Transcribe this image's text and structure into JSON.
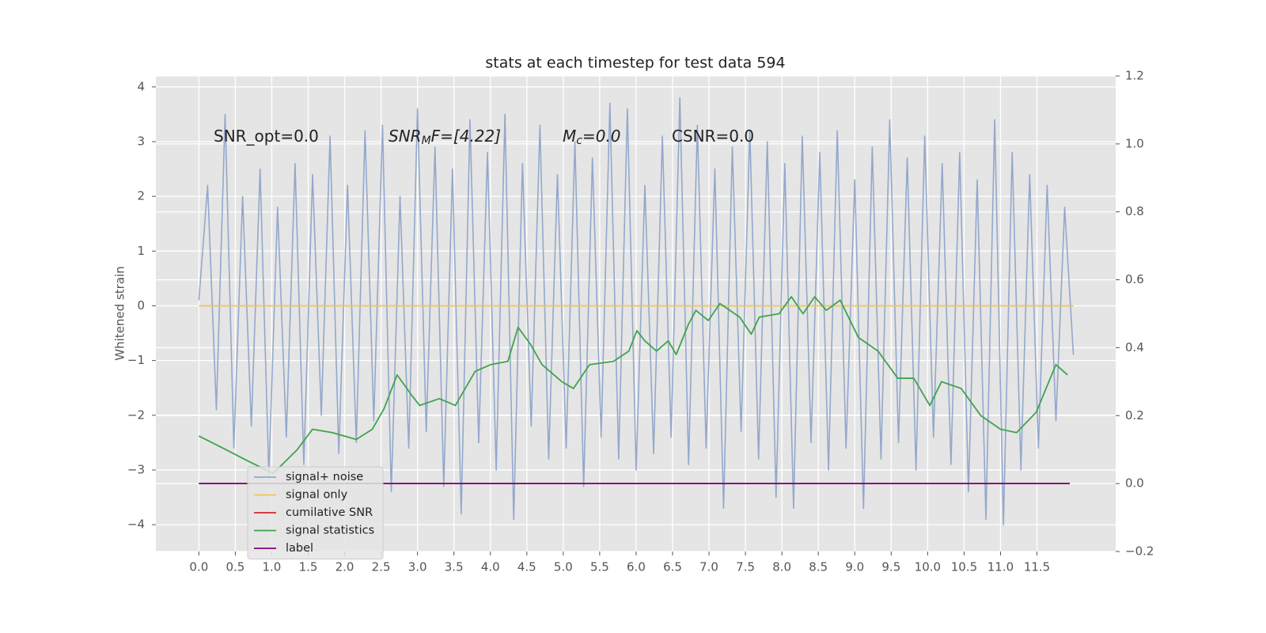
{
  "chart_data": {
    "type": "line",
    "title": "stats at each timestep for test data 594",
    "ylabel": "Whitened strain",
    "grid": true,
    "legend": "lower left",
    "background": "#e5e5e5",
    "annotations": [
      {
        "text": "SNR_opt=0.0"
      },
      {
        "text": "SNR",
        "sub": "M",
        "rest": "F=[4.22]"
      },
      {
        "text": "M",
        "sub": "c",
        "rest": "=0.0"
      },
      {
        "text": "CSNR=0.0"
      }
    ],
    "xlim": [
      -0.59,
      12.58
    ],
    "xticks": [
      {
        "value": 0,
        "label": "0.0"
      },
      0.5,
      {
        "value": 1,
        "label": "1.0"
      },
      1.5,
      {
        "value": 2,
        "label": "2.0"
      },
      2.5,
      {
        "value": 3,
        "label": "3.0"
      },
      3.5,
      {
        "value": 4,
        "label": "4.0"
      },
      4.5,
      {
        "value": 5,
        "label": "5.0"
      },
      5.5,
      {
        "value": 6,
        "label": "6.0"
      },
      6.5,
      {
        "value": 7,
        "label": "7.0"
      },
      7.5,
      {
        "value": 8,
        "label": "8.0"
      },
      8.5,
      {
        "value": 9,
        "label": "9.0"
      },
      9.5,
      {
        "value": 10,
        "label": "10.0"
      },
      10.5,
      {
        "value": 11,
        "label": "11.0"
      },
      11.5
    ],
    "ylim": [
      -4.49,
      4.2
    ],
    "yticks": [
      {
        "value": -4,
        "label": "−4"
      },
      {
        "value": -3,
        "label": "−3"
      },
      {
        "value": -2,
        "label": "−2"
      },
      {
        "value": -1,
        "label": "−1"
      },
      0,
      1,
      2,
      3,
      4
    ],
    "y2lim": [
      -0.2,
      1.2
    ],
    "y2ticks": [
      {
        "value": -0.2,
        "label": "−0.2"
      },
      {
        "value": 0,
        "label": "0.0"
      },
      0.2,
      0.4,
      0.6,
      0.8,
      {
        "value": 1,
        "label": "1.0"
      },
      1.2
    ],
    "series": [
      {
        "name": "signal+ noise",
        "color": "#93a8cc",
        "x": [
          0,
          0.12,
          0.24,
          0.36,
          0.48,
          0.6,
          0.72,
          0.84,
          0.96,
          1.08,
          1.2,
          1.32,
          1.44,
          1.56,
          1.68,
          1.8,
          1.92,
          2.04,
          2.16,
          2.28,
          2.4,
          2.52,
          2.64,
          2.76,
          2.88,
          3,
          3.12,
          3.24,
          3.36,
          3.48,
          3.6,
          3.72,
          3.84,
          3.96,
          4.08,
          4.2,
          4.32,
          4.44,
          4.56,
          4.68,
          4.8,
          4.92,
          5.04,
          5.16,
          5.28,
          5.4,
          5.52,
          5.64,
          5.76,
          5.88,
          6,
          6.12,
          6.24,
          6.36,
          6.48,
          6.6,
          6.72,
          6.84,
          6.96,
          7.08,
          7.2,
          7.32,
          7.44,
          7.56,
          7.68,
          7.8,
          7.92,
          8.04,
          8.16,
          8.28,
          8.4,
          8.52,
          8.64,
          8.76,
          8.88,
          9,
          9.12,
          9.24,
          9.36,
          9.48,
          9.6,
          9.72,
          9.84,
          9.96,
          10.08,
          10.2,
          10.32,
          10.44,
          10.56,
          10.68,
          10.8,
          10.92,
          11.04,
          11.16,
          11.28,
          11.4,
          11.52,
          11.64,
          11.76,
          11.88,
          12
        ],
        "values": [
          0.1,
          2.2,
          -1.9,
          3.5,
          -2.6,
          2.0,
          -2.2,
          2.5,
          -3.1,
          1.8,
          -2.4,
          2.6,
          -2.9,
          2.4,
          -2.0,
          3.1,
          -2.7,
          2.2,
          -2.5,
          3.2,
          -2.1,
          3.3,
          -3.4,
          2.0,
          -2.6,
          3.6,
          -2.3,
          2.9,
          -3.3,
          2.5,
          -3.8,
          3.4,
          -2.5,
          2.8,
          -3.0,
          3.5,
          -3.9,
          2.6,
          -2.2,
          3.3,
          -2.8,
          2.4,
          -2.6,
          3.0,
          -3.3,
          2.7,
          -2.4,
          3.7,
          -2.8,
          3.6,
          -3.0,
          2.2,
          -2.7,
          3.1,
          -2.4,
          3.8,
          -2.9,
          3.3,
          -2.6,
          2.5,
          -3.7,
          2.9,
          -2.3,
          3.2,
          -2.8,
          3.0,
          -3.5,
          2.6,
          -3.7,
          3.1,
          -2.5,
          2.8,
          -3.0,
          3.2,
          -2.6,
          2.3,
          -3.7,
          2.9,
          -2.8,
          3.4,
          -2.5,
          2.7,
          -3.0,
          3.1,
          -2.4,
          2.6,
          -2.9,
          2.8,
          -3.4,
          2.3,
          -3.9,
          3.4,
          -4.0,
          2.8,
          -3.0,
          2.4,
          -2.6,
          2.2,
          -2.1,
          1.8,
          -0.9
        ]
      },
      {
        "name": "signal only",
        "color": "#f0c45a",
        "x": [
          0,
          12
        ],
        "values": [
          0,
          0
        ]
      },
      {
        "name": "cumilative SNR",
        "color": "#d62728",
        "axis": "y2",
        "x": [
          0,
          11.95
        ],
        "values": [
          0,
          0
        ]
      },
      {
        "name": "signal statistics",
        "color": "#3fa34d",
        "axis": "y2",
        "x": [
          0,
          0.37,
          0.64,
          1.02,
          1.35,
          1.56,
          1.83,
          2.16,
          2.38,
          2.54,
          2.72,
          2.92,
          3.03,
          3.3,
          3.52,
          3.79,
          4.0,
          4.24,
          4.38,
          4.55,
          4.71,
          4.98,
          5.14,
          5.36,
          5.69,
          5.9,
          6.01,
          6.12,
          6.28,
          6.44,
          6.55,
          6.72,
          6.82,
          6.99,
          7.15,
          7.42,
          7.58,
          7.69,
          7.96,
          8.13,
          8.29,
          8.45,
          8.61,
          8.8,
          9.05,
          9.32,
          9.59,
          9.81,
          10.03,
          10.19,
          10.46,
          10.73,
          11.0,
          11.22,
          11.49,
          11.76,
          11.92
        ],
        "values": [
          0.14,
          0.1,
          0.07,
          0.03,
          0.1,
          0.16,
          0.15,
          0.13,
          0.16,
          0.22,
          0.32,
          0.26,
          0.23,
          0.25,
          0.23,
          0.33,
          0.35,
          0.36,
          0.46,
          0.41,
          0.35,
          0.3,
          0.28,
          0.35,
          0.36,
          0.39,
          0.45,
          0.42,
          0.39,
          0.42,
          0.38,
          0.47,
          0.51,
          0.48,
          0.53,
          0.49,
          0.44,
          0.49,
          0.5,
          0.55,
          0.5,
          0.55,
          0.51,
          0.54,
          0.43,
          0.39,
          0.31,
          0.31,
          0.23,
          0.3,
          0.28,
          0.2,
          0.16,
          0.15,
          0.21,
          0.35,
          0.32
        ]
      },
      {
        "name": "label",
        "color": "#800080",
        "axis": "y2",
        "x": [
          0,
          11.95
        ],
        "values": [
          0,
          0
        ]
      }
    ]
  }
}
